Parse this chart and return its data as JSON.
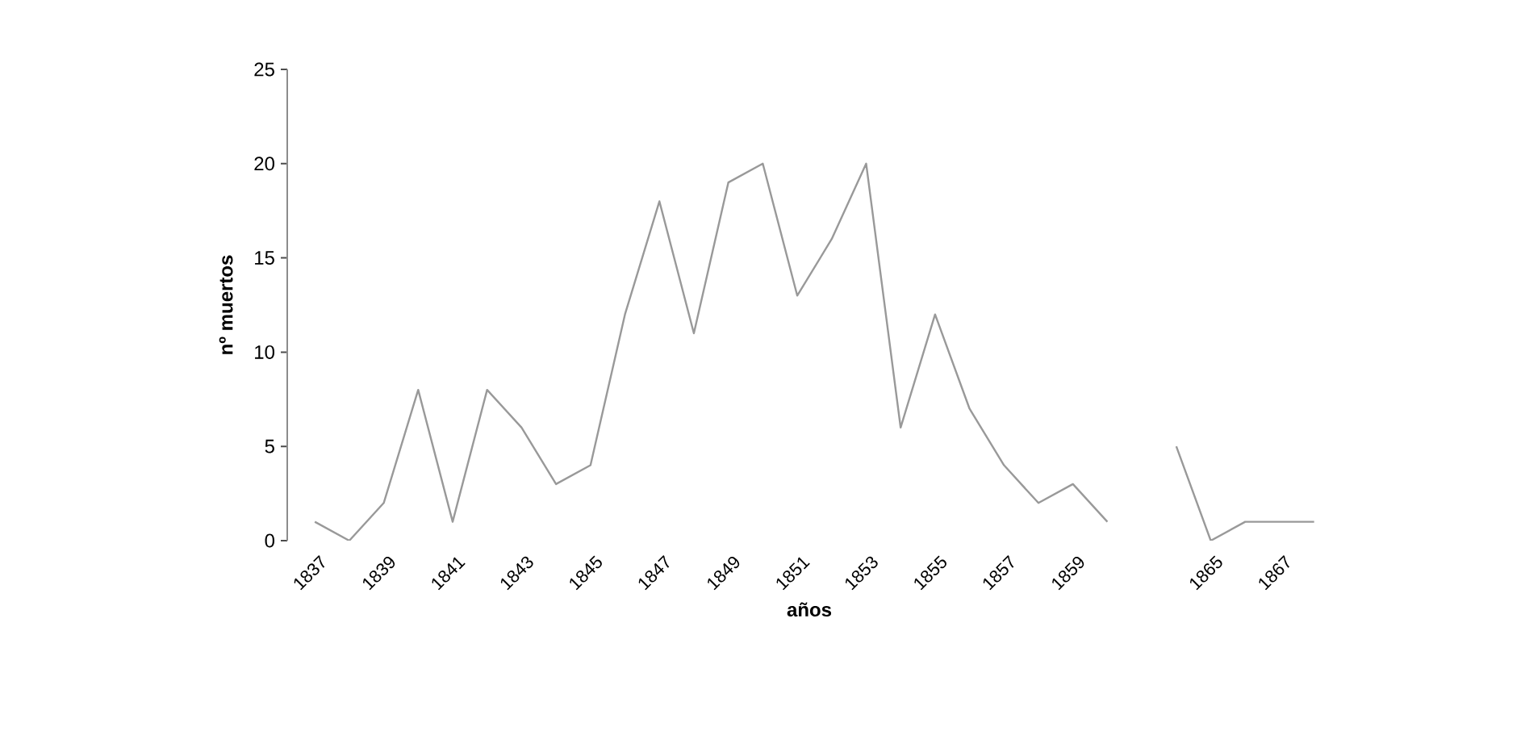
{
  "chart_data": {
    "type": "line",
    "xlabel": "años",
    "ylabel": "nº muertos",
    "categories": [
      "1837",
      null,
      "1839",
      null,
      "1841",
      null,
      "1843",
      null,
      "1845",
      null,
      "1847",
      null,
      "1849",
      null,
      "1851",
      null,
      "1853",
      null,
      "1855",
      null,
      "1857",
      null,
      "1859",
      null,
      null,
      null,
      "1865",
      null,
      "1867",
      null
    ],
    "values": [
      1,
      0,
      2,
      8,
      1,
      8,
      6,
      3,
      4,
      12,
      18,
      11,
      19,
      20,
      13,
      16,
      20,
      6,
      12,
      7,
      4,
      2,
      3,
      1,
      null,
      5,
      0,
      1,
      1,
      1
    ],
    "color": "#999999",
    "ylim": [
      0,
      25
    ],
    "yticks": [
      0,
      5,
      10,
      15,
      20,
      25
    ],
    "grid": false,
    "marker": "none",
    "line_style": "solid"
  }
}
